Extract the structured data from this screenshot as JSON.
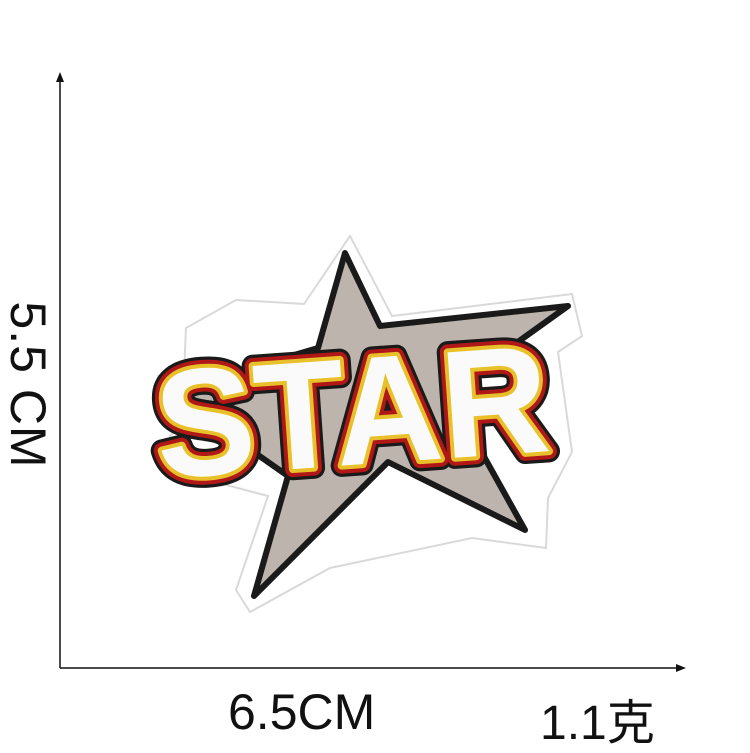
{
  "dimensions": {
    "height_label": "5.5 CM",
    "width_label": "6.5CM",
    "weight_label": "1.1克"
  },
  "patch": {
    "text": "STAR"
  },
  "colors": {
    "outline": "#1a1a1a",
    "star_fill": "#bdb5ad",
    "patch_base": "#ffffff",
    "letter_red": "#b01818",
    "letter_yellow": "#e8c12a",
    "letter_fill": "#fafafa"
  }
}
